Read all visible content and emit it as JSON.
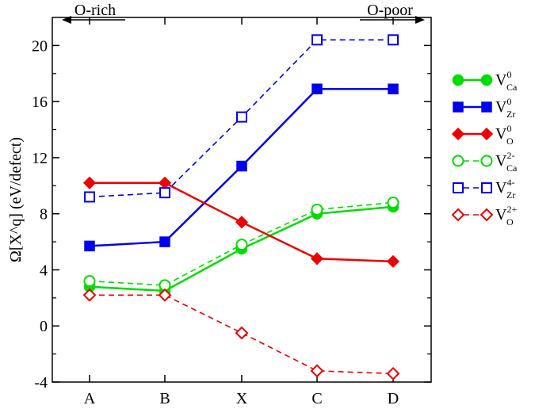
{
  "chart_data": {
    "type": "line",
    "ylabel": "Ω[X^q] (eV/defect)",
    "categories": [
      "A",
      "B",
      "X",
      "C",
      "D"
    ],
    "ylim": [
      -4,
      22
    ],
    "yticks": [
      -4,
      0,
      4,
      8,
      12,
      16,
      20
    ],
    "ytick_labels": [
      "-4",
      "0",
      "4",
      "8",
      "12",
      "16",
      "20"
    ],
    "grid": false,
    "legend_position": "right",
    "annotations": [
      {
        "text": "O-rich",
        "arrow": "left",
        "position": "top-left"
      },
      {
        "text": "O-poor",
        "arrow": "right",
        "position": "top-right"
      }
    ],
    "series": [
      {
        "name": "V_Ca^0",
        "label_main": "V",
        "label_sub": "Ca",
        "label_sup": "0",
        "color": "#00dd00",
        "marker": "circle",
        "filled": true,
        "dashed": false,
        "values": [
          2.8,
          2.5,
          5.5,
          8.0,
          8.5
        ]
      },
      {
        "name": "V_Zr^0",
        "label_main": "V",
        "label_sub": "Zr",
        "label_sup": "0",
        "color": "#0000ee",
        "marker": "square",
        "filled": true,
        "dashed": false,
        "values": [
          5.7,
          6.0,
          11.4,
          16.9,
          16.9
        ]
      },
      {
        "name": "V_O^0",
        "label_main": "V",
        "label_sub": "O",
        "label_sup": "0",
        "color": "#ee0000",
        "marker": "diamond",
        "filled": true,
        "dashed": false,
        "values": [
          10.2,
          10.2,
          7.4,
          4.8,
          4.6
        ]
      },
      {
        "name": "V_Ca^2-",
        "label_main": "V",
        "label_sub": "Ca",
        "label_sup": "2-",
        "color": "#00dd00",
        "marker": "circle",
        "filled": false,
        "dashed": true,
        "values": [
          3.2,
          2.9,
          5.8,
          8.3,
          8.8
        ]
      },
      {
        "name": "V_Zr^4-",
        "label_main": "V",
        "label_sub": "Zr",
        "label_sup": "4-",
        "color": "#0000ee",
        "marker": "square",
        "filled": false,
        "dashed": true,
        "values": [
          9.2,
          9.5,
          14.9,
          20.4,
          20.4
        ]
      },
      {
        "name": "V_O^2+",
        "label_main": "V",
        "label_sub": "O",
        "label_sup": "2+",
        "color": "#ee0000",
        "marker": "diamond",
        "filled": false,
        "dashed": true,
        "values": [
          2.2,
          2.2,
          -0.5,
          -3.2,
          -3.4
        ]
      }
    ]
  }
}
